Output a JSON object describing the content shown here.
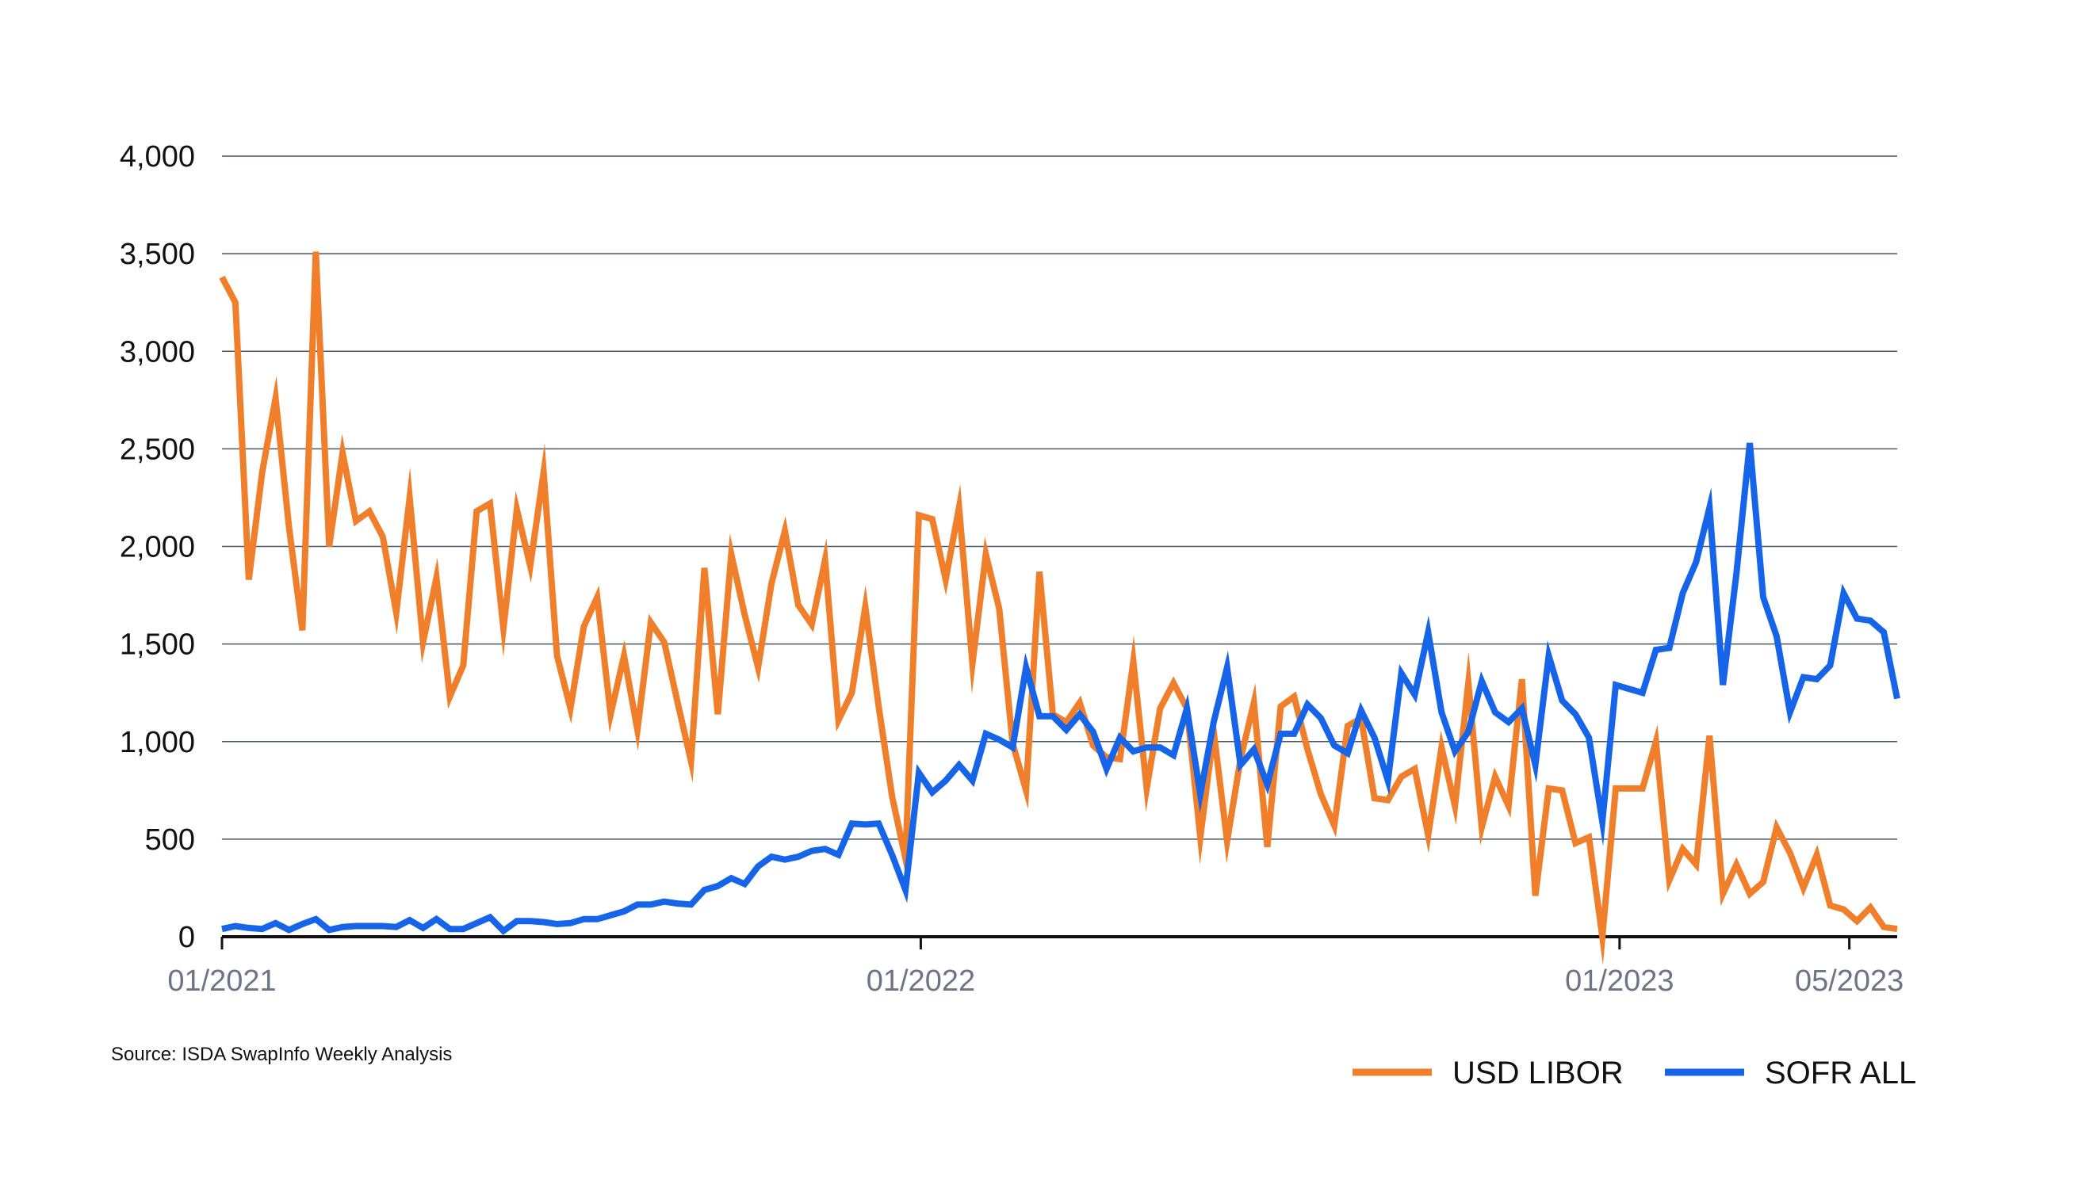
{
  "chart_data": {
    "type": "line",
    "yticks": [
      "0",
      "500",
      "1,000",
      "1,500",
      "2,000",
      "2,500",
      "3,000",
      "3,500",
      "4,000"
    ],
    "ytick_values": [
      0,
      500,
      1000,
      1500,
      2000,
      2500,
      3000,
      3500,
      4000
    ],
    "ylim": [
      0,
      4000
    ],
    "xlim": [
      "2021-01-01",
      "2023-05-26"
    ],
    "xticks": [
      {
        "label": "01/2021",
        "date": "2021-01-01"
      },
      {
        "label": "01/2022",
        "date": "2022-01-01"
      },
      {
        "label": "01/2023",
        "date": "2023-01-01"
      },
      {
        "label": "05/2023",
        "date": "2023-05-01"
      }
    ],
    "grid": true,
    "legend_position": "bottom-right",
    "source": "Source: ISDA SwapInfo Weekly Analysis",
    "x": [
      "2021-01-01",
      "2021-01-08",
      "2021-01-15",
      "2021-01-22",
      "2021-01-29",
      "2021-02-05",
      "2021-02-12",
      "2021-02-19",
      "2021-02-26",
      "2021-03-05",
      "2021-03-12",
      "2021-03-19",
      "2021-03-26",
      "2021-04-02",
      "2021-04-09",
      "2021-04-16",
      "2021-04-23",
      "2021-04-30",
      "2021-05-07",
      "2021-05-14",
      "2021-05-21",
      "2021-05-28",
      "2021-06-04",
      "2021-06-11",
      "2021-06-18",
      "2021-06-25",
      "2021-07-02",
      "2021-07-09",
      "2021-07-16",
      "2021-07-23",
      "2021-07-30",
      "2021-08-06",
      "2021-08-13",
      "2021-08-20",
      "2021-08-27",
      "2021-09-03",
      "2021-09-10",
      "2021-09-17",
      "2021-09-24",
      "2021-10-01",
      "2021-10-08",
      "2021-10-15",
      "2021-10-22",
      "2021-10-29",
      "2021-11-05",
      "2021-11-12",
      "2021-11-19",
      "2021-11-26",
      "2021-12-03",
      "2021-12-10",
      "2021-12-17",
      "2021-12-24",
      "2021-12-31",
      "2022-01-07",
      "2022-01-14",
      "2022-01-21",
      "2022-01-28",
      "2022-02-04",
      "2022-02-11",
      "2022-02-18",
      "2022-02-25",
      "2022-03-04",
      "2022-03-11",
      "2022-03-18",
      "2022-03-25",
      "2022-04-01",
      "2022-04-08",
      "2022-04-15",
      "2022-04-22",
      "2022-04-29",
      "2022-05-06",
      "2022-05-13",
      "2022-05-20",
      "2022-05-27",
      "2022-06-03",
      "2022-06-10",
      "2022-06-17",
      "2022-06-24",
      "2022-07-01",
      "2022-07-08",
      "2022-07-15",
      "2022-07-22",
      "2022-07-29",
      "2022-08-05",
      "2022-08-12",
      "2022-08-19",
      "2022-08-26",
      "2022-09-02",
      "2022-09-09",
      "2022-09-16",
      "2022-09-23",
      "2022-09-30",
      "2022-10-07",
      "2022-10-14",
      "2022-10-21",
      "2022-10-28",
      "2022-11-04",
      "2022-11-11",
      "2022-11-18",
      "2022-11-25",
      "2022-12-02",
      "2022-12-09",
      "2022-12-16",
      "2022-12-23",
      "2022-12-30",
      "2023-01-06",
      "2023-01-13",
      "2023-01-20",
      "2023-01-27",
      "2023-02-03",
      "2023-02-10",
      "2023-02-17",
      "2023-02-24",
      "2023-03-03",
      "2023-03-10",
      "2023-03-17",
      "2023-03-24",
      "2023-03-31",
      "2023-04-07",
      "2023-04-14",
      "2023-04-21",
      "2023-04-28",
      "2023-05-05",
      "2023-05-12",
      "2023-05-19",
      "2023-05-26"
    ],
    "series": [
      {
        "name": "USD LIBOR",
        "color": "#f07f2b",
        "values": [
          3380,
          3250,
          1830,
          2380,
          2760,
          2100,
          1570,
          3510,
          2000,
          2480,
          2130,
          2180,
          2050,
          1660,
          2250,
          1510,
          1840,
          1230,
          1390,
          2180,
          2220,
          1580,
          2190,
          1900,
          2380,
          1440,
          1170,
          1590,
          1740,
          1140,
          1440,
          1060,
          1610,
          1510,
          1200,
          900,
          1890,
          1140,
          1960,
          1650,
          1380,
          1810,
          2080,
          1700,
          1600,
          1930,
          1110,
          1250,
          1690,
          1180,
          720,
          400,
          2160,
          2140,
          1830,
          2200,
          1400,
          1960,
          1680,
          990,
          750,
          1870,
          1140,
          1100,
          1200,
          980,
          920,
          910,
          1410,
          760,
          1170,
          1300,
          1170,
          510,
          1050,
          490,
          910,
          1200,
          460,
          1180,
          1230,
          960,
          730,
          570,
          1080,
          1120,
          710,
          700,
          820,
          860,
          520,
          970,
          670,
          1300,
          560,
          820,
          670,
          1320,
          210,
          760,
          750,
          480,
          510,
          0,
          760,
          760,
          760,
          1000,
          290,
          450,
          370,
          1030,
          220,
          370,
          220,
          280,
          560,
          430,
          250,
          420,
          160,
          140,
          80,
          150,
          50,
          40
        ]
      },
      {
        "name": "SOFR ALL",
        "color": "#1665e9",
        "values": [
          40,
          55,
          45,
          40,
          70,
          35,
          65,
          90,
          35,
          50,
          55,
          55,
          55,
          50,
          85,
          45,
          90,
          40,
          40,
          70,
          100,
          30,
          80,
          80,
          75,
          65,
          70,
          90,
          90,
          110,
          130,
          165,
          165,
          180,
          170,
          165,
          240,
          260,
          300,
          270,
          360,
          410,
          395,
          410,
          440,
          450,
          420,
          580,
          575,
          580,
          420,
          240,
          840,
          740,
          800,
          880,
          800,
          1040,
          1010,
          970,
          1380,
          1130,
          1130,
          1060,
          1140,
          1050,
          860,
          1020,
          950,
          970,
          970,
          930,
          1170,
          730,
          1100,
          1380,
          880,
          960,
          780,
          1040,
          1040,
          1190,
          1120,
          980,
          940,
          1160,
          1020,
          800,
          1350,
          1240,
          1560,
          1150,
          950,
          1050,
          1310,
          1150,
          1100,
          1170,
          880,
          1440,
          1210,
          1140,
          1020,
          590,
          1290,
          1270,
          1250,
          1470,
          1480,
          1760,
          1920,
          2200,
          1290,
          1860,
          2530,
          1740,
          1540,
          1150,
          1330,
          1320,
          1390,
          1760,
          1630,
          1620,
          1560,
          1220
        ]
      }
    ]
  }
}
